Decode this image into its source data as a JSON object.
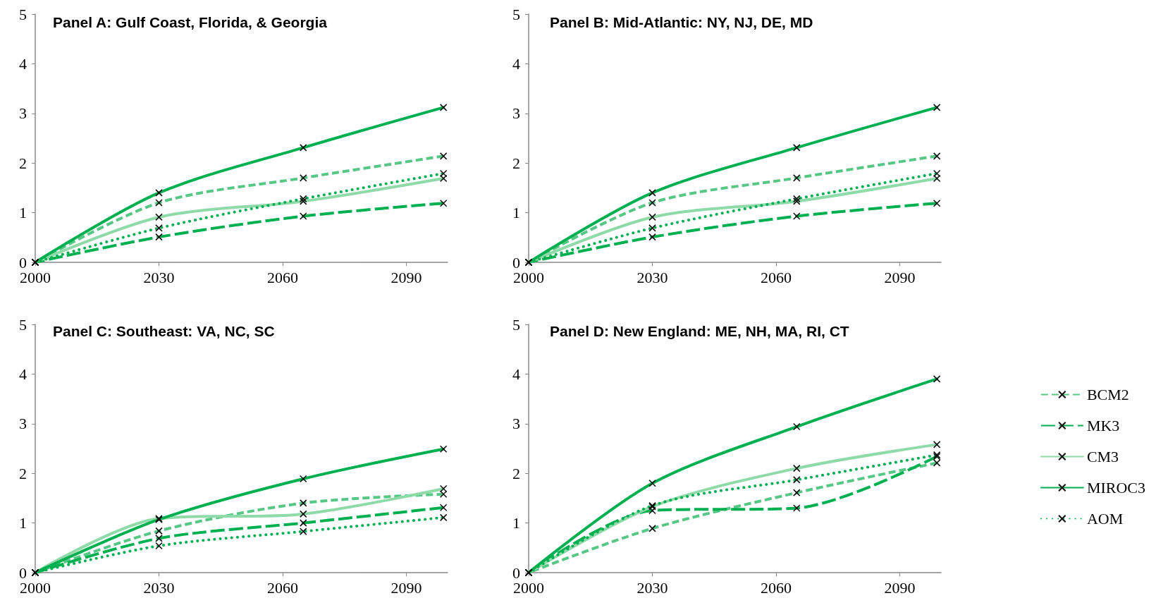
{
  "chart_data": [
    {
      "type": "line",
      "title": "Panel A: Gulf Coast, Florida, & Georgia",
      "x": [
        2000,
        2030,
        2065,
        2099
      ],
      "xlim": [
        2000,
        2100
      ],
      "xticks": [
        2000,
        2030,
        2060,
        2090
      ],
      "ylim": [
        0,
        5
      ],
      "yticks": [
        0,
        1,
        2,
        3,
        4,
        5
      ],
      "grid": false,
      "legend": false,
      "marker": "cross",
      "series": [
        {
          "color": "#57c785",
          "line_style": "dashed",
          "values": [
            0,
            1.2,
            1.7,
            2.14
          ]
        },
        {
          "color": "#00b050",
          "line_style": "dashed",
          "values": [
            0,
            0.51,
            0.93,
            1.19
          ]
        },
        {
          "color": "#8fdaa9",
          "line_style": "solid",
          "values": [
            0,
            0.91,
            1.23,
            1.69
          ]
        },
        {
          "color": "#00b050",
          "line_style": "solid",
          "values": [
            0,
            1.4,
            2.31,
            3.12
          ]
        },
        {
          "color": "#00b050",
          "line_style": "dotted",
          "values": [
            0,
            0.69,
            1.28,
            1.79
          ]
        }
      ]
    },
    {
      "type": "line",
      "title": "Panel B: Mid-Atlantic: NY, NJ, DE, MD",
      "x": [
        2000,
        2030,
        2065,
        2099
      ],
      "xlim": [
        2000,
        2100
      ],
      "xticks": [
        2000,
        2030,
        2060,
        2090
      ],
      "ylim": [
        0,
        5
      ],
      "yticks": [
        0,
        1,
        2,
        3,
        4,
        5
      ],
      "grid": false,
      "legend": false,
      "marker": "cross",
      "series": [
        {
          "color": "#57c785",
          "line_style": "dashed",
          "values": [
            0,
            1.2,
            1.7,
            2.14
          ]
        },
        {
          "color": "#00b050",
          "line_style": "dashed",
          "values": [
            0,
            0.51,
            0.93,
            1.19
          ]
        },
        {
          "color": "#8fdaa9",
          "line_style": "solid",
          "values": [
            0,
            0.91,
            1.23,
            1.69
          ]
        },
        {
          "color": "#00b050",
          "line_style": "solid",
          "values": [
            0,
            1.4,
            2.31,
            3.12
          ]
        },
        {
          "color": "#00b050",
          "line_style": "dotted",
          "values": [
            0,
            0.69,
            1.28,
            1.79
          ]
        }
      ]
    },
    {
      "type": "line",
      "title": "Panel C: Southeast: VA, NC, SC",
      "x": [
        2000,
        2030,
        2065,
        2099
      ],
      "xlim": [
        2000,
        2100
      ],
      "xticks": [
        2000,
        2030,
        2060,
        2090
      ],
      "ylim": [
        0,
        5
      ],
      "yticks": [
        0,
        1,
        2,
        3,
        4,
        5
      ],
      "grid": false,
      "legend": false,
      "marker": "cross",
      "series": [
        {
          "color": "#57c785",
          "line_style": "dashed",
          "values": [
            0,
            0.84,
            1.4,
            1.58
          ]
        },
        {
          "color": "#00b050",
          "line_style": "dashed",
          "values": [
            0,
            0.69,
            1.0,
            1.31
          ]
        },
        {
          "color": "#8fdaa9",
          "line_style": "solid",
          "values": [
            0,
            1.09,
            1.18,
            1.69
          ]
        },
        {
          "color": "#00b050",
          "line_style": "solid",
          "values": [
            0,
            1.07,
            1.89,
            2.49
          ]
        },
        {
          "color": "#00b050",
          "line_style": "dotted",
          "values": [
            0,
            0.54,
            0.83,
            1.11
          ]
        }
      ]
    },
    {
      "type": "line",
      "title": "Panel D: New England: ME, NH, MA, RI, CT",
      "x": [
        2000,
        2030,
        2065,
        2099
      ],
      "xlim": [
        2000,
        2100
      ],
      "xticks": [
        2000,
        2030,
        2060,
        2090
      ],
      "ylim": [
        0,
        5
      ],
      "yticks": [
        0,
        1,
        2,
        3,
        4,
        5
      ],
      "grid": false,
      "legend": "right",
      "marker": "cross",
      "series": [
        {
          "name": "BCM2",
          "color": "#57c785",
          "line_style": "dashed",
          "values": [
            0,
            0.89,
            1.61,
            2.21
          ]
        },
        {
          "name": "MK3",
          "color": "#00b050",
          "line_style": "dashed",
          "values": [
            0,
            1.25,
            1.3,
            2.34
          ]
        },
        {
          "name": "CM3",
          "color": "#8fdaa9",
          "line_style": "solid",
          "values": [
            0,
            1.33,
            2.1,
            2.58
          ]
        },
        {
          "name": "MIROC3",
          "color": "#00b050",
          "line_style": "solid",
          "values": [
            0,
            1.8,
            2.94,
            3.9
          ]
        },
        {
          "name": "AOM",
          "color": "#00b050",
          "line_style": "dotted",
          "values": [
            0,
            1.35,
            1.87,
            2.37
          ]
        }
      ]
    }
  ]
}
